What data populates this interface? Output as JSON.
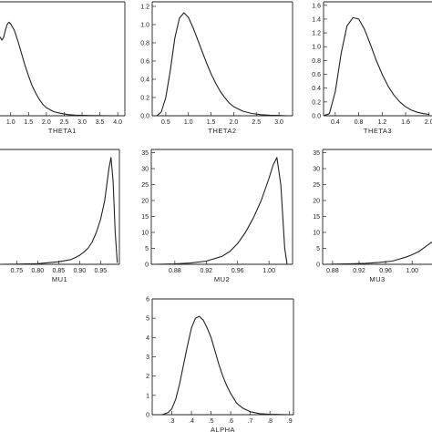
{
  "chart_data": [
    {
      "type": "line",
      "xlabel": "THETA1",
      "xticks": [
        1.0,
        1.5,
        2.0,
        2.5,
        3.0,
        3.5,
        4.0
      ],
      "xtick_labels": [
        "1.0",
        "1.5",
        "2.0",
        "2.5",
        "3.0",
        "3.5",
        "4.0"
      ],
      "yticks": [],
      "ytick_labels": [],
      "xlim": [
        0.7,
        4.2
      ],
      "ylim": [
        0,
        1.4
      ],
      "x": [
        0.7,
        0.75,
        0.8,
        0.85,
        0.9,
        0.95,
        1.0,
        1.1,
        1.2,
        1.3,
        1.4,
        1.5,
        1.6,
        1.7,
        1.8,
        1.9,
        2.0,
        2.2,
        2.4,
        2.6,
        2.8,
        3.0,
        3.3,
        3.6,
        4.0
      ],
      "y": [
        0.97,
        0.93,
        0.96,
        1.05,
        1.12,
        1.15,
        1.13,
        1.05,
        0.92,
        0.77,
        0.62,
        0.49,
        0.37,
        0.28,
        0.2,
        0.14,
        0.1,
        0.05,
        0.03,
        0.015,
        0.008,
        0.004,
        0.002,
        0.001,
        0.0
      ]
    },
    {
      "type": "line",
      "xlabel": "THETA2",
      "xticks": [
        0.5,
        1.0,
        1.5,
        2.0,
        2.5,
        3.0
      ],
      "xtick_labels": [
        "0.5",
        "1.0",
        "1.5",
        "2.0",
        "2.5",
        "3.0"
      ],
      "yticks": [
        0.0,
        0.2,
        0.4,
        0.6,
        0.8,
        1.0,
        1.2
      ],
      "ytick_labels": [
        "0.0",
        "0.2",
        "0.4",
        "0.6",
        "0.8",
        "1.0",
        "1.2"
      ],
      "xlim": [
        0.2,
        3.3
      ],
      "ylim": [
        0,
        1.25
      ],
      "x": [
        0.3,
        0.4,
        0.5,
        0.6,
        0.7,
        0.8,
        0.9,
        1.0,
        1.1,
        1.2,
        1.3,
        1.4,
        1.5,
        1.6,
        1.7,
        1.8,
        1.9,
        2.0,
        2.2,
        2.4,
        2.6,
        2.8,
        3.0,
        3.2
      ],
      "y": [
        0.0,
        0.04,
        0.2,
        0.5,
        0.85,
        1.07,
        1.13,
        1.08,
        0.97,
        0.84,
        0.71,
        0.58,
        0.46,
        0.36,
        0.27,
        0.2,
        0.14,
        0.1,
        0.05,
        0.025,
        0.012,
        0.006,
        0.003,
        0.0
      ]
    },
    {
      "type": "line",
      "xlabel": "THETA3",
      "xticks": [
        0.4,
        0.8,
        1.2,
        1.6,
        2.0
      ],
      "xtick_labels": [
        "0.4",
        "0.8",
        "1.2",
        "1.6",
        "2.0"
      ],
      "yticks": [
        0.0,
        0.2,
        0.4,
        0.6,
        0.8,
        1.0,
        1.2,
        1.4,
        1.6
      ],
      "ytick_labels": [
        "0.0",
        "0.2",
        "0.4",
        "0.6",
        "0.8",
        "1.0",
        "1.2",
        "1.4",
        "1.6"
      ],
      "xlim": [
        0.2,
        2.05
      ],
      "ylim": [
        0,
        1.65
      ],
      "x": [
        0.2,
        0.3,
        0.4,
        0.5,
        0.6,
        0.7,
        0.8,
        0.9,
        1.0,
        1.1,
        1.2,
        1.3,
        1.4,
        1.5,
        1.6,
        1.7,
        1.8,
        1.9,
        2.0
      ],
      "y": [
        0.0,
        0.03,
        0.35,
        0.9,
        1.3,
        1.42,
        1.4,
        1.25,
        1.03,
        0.8,
        0.6,
        0.43,
        0.3,
        0.2,
        0.13,
        0.08,
        0.05,
        0.03,
        0.02
      ]
    },
    {
      "type": "line",
      "xlabel": "MU1",
      "xticks": [
        0.75,
        0.8,
        0.85,
        0.9,
        0.95
      ],
      "xtick_labels": [
        "0.75",
        "0.80",
        "0.85",
        "0.90",
        "0.95"
      ],
      "yticks": [],
      "ytick_labels": [],
      "xlim": [
        0.71,
        0.995
      ],
      "ylim": [
        0,
        36
      ],
      "x": [
        0.71,
        0.75,
        0.8,
        0.85,
        0.88,
        0.9,
        0.91,
        0.92,
        0.93,
        0.94,
        0.95,
        0.96,
        0.965,
        0.97,
        0.975,
        0.98,
        0.985,
        0.99
      ],
      "y": [
        0.0,
        0.05,
        0.2,
        0.8,
        1.5,
        2.8,
        3.8,
        5.0,
        7.0,
        10.0,
        14.0,
        20.0,
        25.0,
        30.0,
        33.5,
        26.0,
        10.0,
        0.5
      ]
    },
    {
      "type": "line",
      "xlabel": "MU2",
      "xticks": [
        0.88,
        0.92,
        0.96,
        1.0
      ],
      "xtick_labels": [
        "0.88",
        "0.92",
        "0.96",
        "1.00"
      ],
      "yticks": [
        0,
        5,
        10,
        15,
        20,
        25,
        30,
        35
      ],
      "ytick_labels": [
        "0",
        "5",
        "10",
        "15",
        "20",
        "25",
        "30",
        "35"
      ],
      "xlim": [
        0.85,
        1.03
      ],
      "ylim": [
        0,
        36
      ],
      "x": [
        0.855,
        0.88,
        0.9,
        0.92,
        0.94,
        0.95,
        0.96,
        0.97,
        0.98,
        0.99,
        1.0,
        1.005,
        1.01,
        1.015,
        1.02,
        1.023
      ],
      "y": [
        0.0,
        0.1,
        0.4,
        1.0,
        2.5,
        4.0,
        6.5,
        10.0,
        14.5,
        20.0,
        27.0,
        31.0,
        33.5,
        25.0,
        5.0,
        0.0
      ]
    },
    {
      "type": "line",
      "xlabel": "MU3",
      "xticks": [
        0.88,
        0.92,
        0.96,
        1.0
      ],
      "xtick_labels": [
        "0.88",
        "0.92",
        "0.96",
        "1.00"
      ],
      "yticks": [
        0,
        5,
        10,
        15,
        20,
        25,
        30,
        35
      ],
      "ytick_labels": [
        "0",
        "5",
        "10",
        "15",
        "20",
        "25",
        "30",
        "35"
      ],
      "xlim": [
        0.865,
        1.03
      ],
      "ylim": [
        0,
        36
      ],
      "x": [
        0.87,
        0.9,
        0.93,
        0.95,
        0.97,
        0.98,
        0.99,
        1.0,
        1.01,
        1.02,
        1.03
      ],
      "y": [
        0.0,
        0.1,
        0.3,
        0.6,
        1.0,
        1.6,
        2.2,
        3.0,
        4.0,
        5.5,
        7.0
      ]
    },
    {
      "type": "line",
      "xlabel": "ALPHA",
      "xticks": [
        0.3,
        0.4,
        0.5,
        0.6,
        0.7,
        0.8,
        0.9
      ],
      "xtick_labels": [
        ".3",
        ".4",
        ".5",
        ".6",
        ".7",
        ".8",
        ".9"
      ],
      "yticks": [
        0,
        1,
        2,
        3,
        4,
        5,
        6
      ],
      "ytick_labels": [
        "0",
        "1",
        "2",
        "3",
        "4",
        "5",
        "6"
      ],
      "xlim": [
        0.2,
        0.92
      ],
      "ylim": [
        0,
        6
      ],
      "x": [
        0.25,
        0.28,
        0.3,
        0.32,
        0.34,
        0.36,
        0.38,
        0.4,
        0.42,
        0.44,
        0.46,
        0.48,
        0.5,
        0.52,
        0.54,
        0.56,
        0.58,
        0.6,
        0.63,
        0.66,
        0.7,
        0.75,
        0.8,
        0.9
      ],
      "y": [
        0.0,
        0.1,
        0.3,
        0.8,
        1.6,
        2.6,
        3.6,
        4.5,
        5.0,
        5.1,
        4.9,
        4.5,
        4.0,
        3.3,
        2.6,
        2.0,
        1.5,
        1.1,
        0.6,
        0.35,
        0.15,
        0.05,
        0.02,
        0.0
      ]
    }
  ]
}
